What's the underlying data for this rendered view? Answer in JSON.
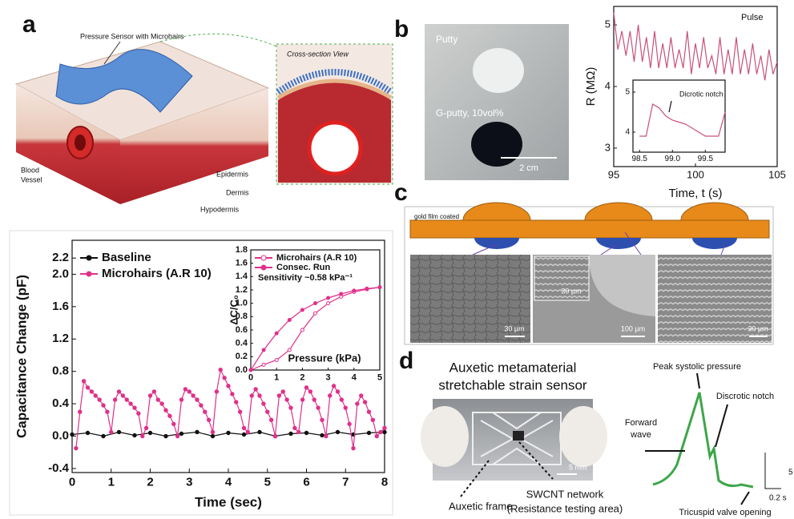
{
  "panels": {
    "a": {
      "letter": "a",
      "sensor_label": "Pressure Sensor with Microhairs",
      "section_label": "Cross-section View",
      "blood_vessel": [
        "Blood",
        "Vessel"
      ],
      "layers": [
        "Epidermis",
        "Dermis",
        "Hypodermis"
      ]
    },
    "b": {
      "letter": "b",
      "photo_labels": [
        "Putty",
        "G-putty, 10vol%"
      ],
      "scale_bar": "2 cm"
    },
    "c": {
      "letter": "c",
      "top_label": "gold film coated",
      "scale_bars": [
        "30 µm",
        "30 µm",
        "100 µm",
        "30 µm"
      ]
    },
    "d": {
      "letter": "d",
      "title": [
        "Auxetic metamaterial",
        "stretchable strain sensor"
      ],
      "scale_bar": "5 mm",
      "photo_labels": [
        "Auxetic frame",
        "SWCNT network",
        "(Resistance testing area)"
      ],
      "annotations": [
        "Peak systolic pressure",
        "Discrotic notch",
        "Forward",
        "wave",
        "Tricuspid valve opening"
      ],
      "time_bar": "0.2 s",
      "cut_label": "5"
    }
  },
  "chart_data": [
    {
      "type": "line",
      "ylabel": "Capacitance Change (pF)",
      "xlabel": "Time (sec)",
      "xlim": [
        0,
        8
      ],
      "xticks": [
        0,
        1,
        2,
        3,
        4,
        5,
        6,
        7,
        8
      ],
      "ylim": [
        -0.45,
        2.42
      ],
      "yticks": [
        -0.4,
        {
          "value": 0,
          "label": "0.0"
        },
        0.4,
        0.8,
        1.2,
        1.6,
        {
          "value": 2,
          "label": "2.0"
        },
        2.2
      ],
      "series": [
        {
          "name": "Baseline",
          "color": "#111111",
          "x": [
            0,
            0.4,
            0.8,
            1.2,
            1.6,
            2,
            2.4,
            2.8,
            3.2,
            3.6,
            4,
            4.4,
            4.8,
            5.2,
            5.6,
            6,
            6.4,
            6.8,
            7.2,
            7.6,
            8
          ],
          "values": [
            0.02,
            0.04,
            0,
            0.05,
            0.01,
            0.04,
            0,
            0.03,
            0.05,
            0,
            0.04,
            0.02,
            0.05,
            0,
            0.03,
            0.04,
            0.01,
            0.05,
            0.02,
            0.04,
            0.05
          ]
        },
        {
          "name": "Microhairs (A.R 10)",
          "color": "#e0308a",
          "x": [
            0.1,
            0.2,
            0.3,
            0.4,
            0.5,
            0.6,
            0.7,
            0.8,
            0.9,
            1,
            1.1,
            1.2,
            1.3,
            1.4,
            1.5,
            1.6,
            1.7,
            1.8,
            1.9,
            2,
            2.1,
            2.2,
            2.3,
            2.4,
            2.5,
            2.6,
            2.7,
            2.8,
            2.9,
            3,
            3.1,
            3.2,
            3.3,
            3.4,
            3.5,
            3.6,
            3.7,
            3.8,
            3.9,
            4,
            4.1,
            4.2,
            4.3,
            4.4,
            4.5,
            4.6,
            4.7,
            4.8,
            4.9,
            5,
            5.1,
            5.2,
            5.3,
            5.4,
            5.5,
            5.6,
            5.7,
            5.8,
            5.9,
            6,
            6.1,
            6.2,
            6.3,
            6.4,
            6.5,
            6.6,
            6.7,
            6.8,
            6.9,
            7,
            7.1,
            7.2,
            7.3,
            7.4,
            7.5,
            7.6,
            7.7,
            7.8,
            7.9,
            8
          ],
          "values": [
            -0.15,
            0.3,
            0.68,
            0.6,
            0.55,
            0.5,
            0.45,
            0.38,
            0.3,
            0.05,
            0.45,
            0.55,
            0.5,
            0.45,
            0.4,
            0.35,
            0.28,
            0,
            0.1,
            0.5,
            0.55,
            0.45,
            0.4,
            0.32,
            0.25,
            0.15,
            0,
            0.45,
            0.58,
            0.55,
            0.5,
            0.45,
            0.38,
            0.3,
            0.2,
            0.05,
            0.55,
            0.82,
            0.72,
            0.62,
            0.52,
            0.42,
            0.3,
            0.1,
            0.05,
            0.5,
            0.58,
            0.5,
            0.4,
            0.3,
            0.2,
            0,
            0.5,
            0.55,
            0.45,
            0.35,
            0.1,
            0.05,
            0.45,
            0.6,
            0.55,
            0.45,
            0.35,
            0.2,
            0,
            0.5,
            0.62,
            0.55,
            0.45,
            0.35,
            0.15,
            -0.15,
            0.4,
            0.5,
            0.42,
            0.3,
            0.2,
            0,
            0.05,
            0.1
          ]
        }
      ]
    },
    {
      "type": "line",
      "ylabel": "ΔC/C₀",
      "xlabel": "Pressure (kPa)",
      "annotation": "Sensitivity ~0.58 kPa⁻¹",
      "xlim": [
        0,
        5
      ],
      "xticks": [
        0,
        1,
        2,
        3,
        4,
        5
      ],
      "ylim": [
        0,
        1.8
      ],
      "yticks": [
        {
          "value": 0,
          "label": "0.0"
        },
        0.2,
        0.4,
        0.6,
        0.8,
        {
          "value": 1,
          "label": "1.0"
        },
        1.2,
        1.4,
        1.6,
        1.8
      ],
      "series": [
        {
          "name": "Microhairs (A.R 10)",
          "color": "#e0308a",
          "x": [
            0,
            0.5,
            1,
            1.5,
            2,
            2.5,
            3,
            3.5,
            4,
            4.5,
            5
          ],
          "values": [
            0,
            0.08,
            0.15,
            0.3,
            0.6,
            0.85,
            1,
            1.1,
            1.17,
            1.21,
            1.24
          ]
        },
        {
          "name": "Consec. Run",
          "color": "#e0308a",
          "x": [
            0,
            0.5,
            1,
            1.5,
            2,
            2.5,
            3,
            3.5,
            4,
            4.5,
            5
          ],
          "values": [
            0,
            0.3,
            0.55,
            0.75,
            0.9,
            1,
            1.08,
            1.14,
            1.19,
            1.22,
            1.24
          ]
        }
      ]
    },
    {
      "type": "line",
      "ylabel": "R (MΩ)",
      "xlabel": "Time, t (s)",
      "xlim": [
        95,
        105
      ],
      "xticks": [
        95,
        100,
        105
      ],
      "ylim": [
        2.7,
        5.3
      ],
      "yticks": [
        3,
        4,
        5
      ],
      "series": [
        {
          "name": "Pulse",
          "color": "#c8507a",
          "x": [
            95,
            95.25,
            95.5,
            95.75,
            96,
            96.25,
            96.5,
            96.75,
            97,
            97.25,
            97.5,
            97.75,
            98,
            98.25,
            98.5,
            98.75,
            99,
            99.25,
            99.5,
            99.75,
            100,
            100.25,
            100.5,
            100.75,
            101,
            101.25,
            101.5,
            101.75,
            102,
            102.25,
            102.5,
            102.75,
            103,
            103.25,
            103.5,
            103.75,
            104,
            104.25,
            104.5,
            104.75,
            105
          ],
          "values": [
            5.2,
            4.6,
            4.9,
            4.5,
            4.9,
            4.4,
            5,
            4.4,
            4.8,
            4.3,
            4.9,
            4.3,
            4.7,
            4.3,
            4.8,
            4.3,
            4.6,
            4.3,
            4.9,
            4.2,
            4.7,
            4.3,
            4.8,
            4.3,
            4.5,
            4.2,
            4.8,
            4.2,
            4.6,
            4.2,
            4.8,
            4.2,
            4.6,
            4.2,
            4.7,
            4.2,
            4.5,
            4.1,
            4.6,
            4.2,
            4.4
          ]
        }
      ]
    },
    {
      "type": "line",
      "annotation": "Dicrotic notch",
      "xlim": [
        98.4,
        99.8
      ],
      "xticks": [
        98.5,
        {
          "value": 99,
          "label": "99.0"
        },
        99.5
      ],
      "ylim": [
        3.5,
        5.3
      ],
      "yticks": [
        4,
        5
      ],
      "series": [
        {
          "color": "#c8507a",
          "x": [
            98.5,
            98.6,
            98.7,
            98.8,
            98.9,
            99,
            99.1,
            99.2,
            99.3,
            99.4,
            99.5,
            99.6,
            99.7,
            99.8
          ],
          "values": [
            3.9,
            3.9,
            4.7,
            4.6,
            4.4,
            4.3,
            4.25,
            4.2,
            4.1,
            4,
            3.9,
            3.9,
            3.9,
            4.5
          ]
        }
      ]
    }
  ]
}
